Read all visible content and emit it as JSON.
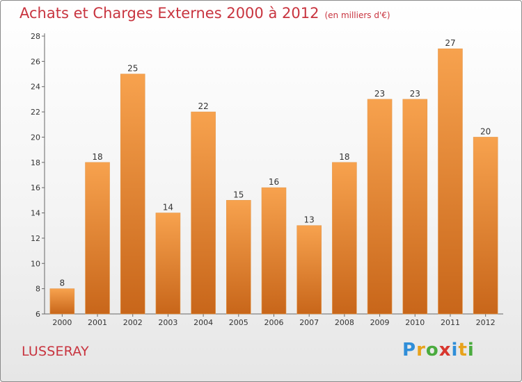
{
  "title": "Achats et Charges Externes 2000 à 2012",
  "subtitle": "(en milliers d'€)",
  "place": "LUSSERAY",
  "brand": {
    "letters": [
      {
        "ch": "P",
        "color": "#2f8ed8"
      },
      {
        "ch": "r",
        "color": "#e8a21b"
      },
      {
        "ch": "o",
        "color": "#4aab3e"
      },
      {
        "ch": "x",
        "color": "#d8362e"
      },
      {
        "ch": "i",
        "color": "#2f8ed8"
      },
      {
        "ch": "t",
        "color": "#e8a21b"
      },
      {
        "ch": "i",
        "color": "#4aab3e"
      }
    ]
  },
  "chart_data": {
    "type": "bar",
    "categories": [
      "2000",
      "2001",
      "2002",
      "2003",
      "2004",
      "2005",
      "2006",
      "2007",
      "2008",
      "2009",
      "2010",
      "2011",
      "2012"
    ],
    "values": [
      8,
      18,
      25,
      14,
      22,
      15,
      16,
      13,
      18,
      23,
      23,
      27,
      20
    ],
    "ylim": [
      6,
      28
    ],
    "yticks": [
      6,
      8,
      10,
      12,
      14,
      16,
      18,
      20,
      22,
      24,
      26,
      28
    ],
    "grid": false,
    "bar_color_top": "#f7a24e",
    "bar_color_bottom": "#c8661a"
  }
}
